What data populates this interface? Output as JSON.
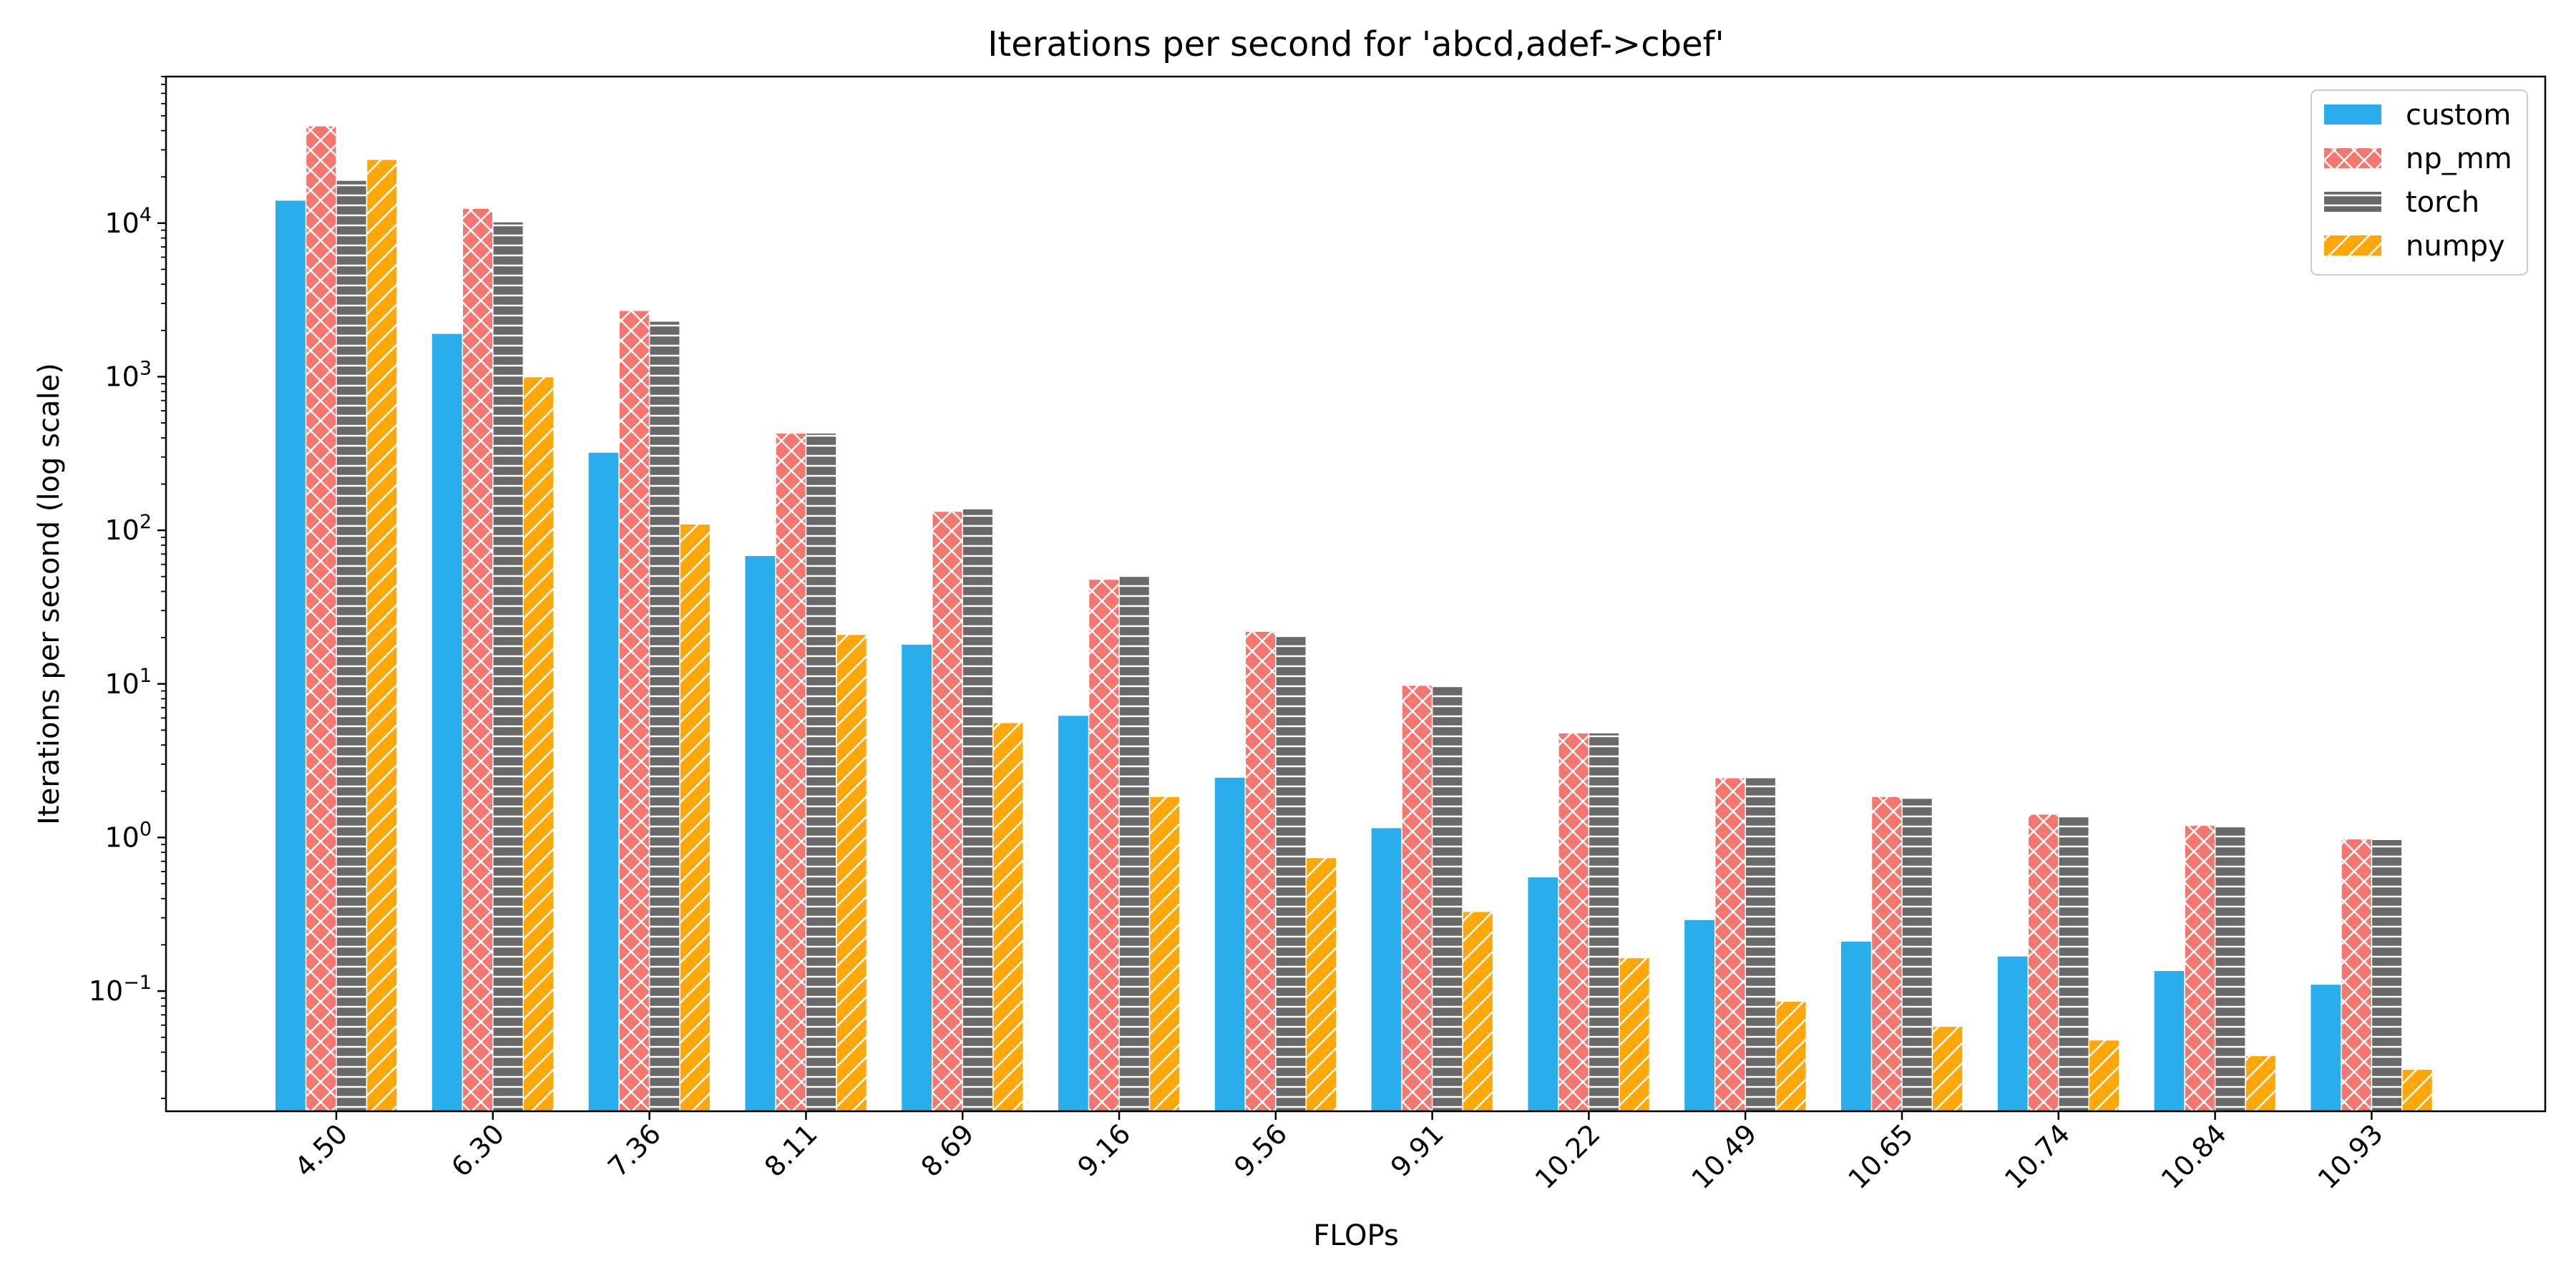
{
  "chart_data": {
    "type": "bar",
    "title": "Iterations per second for 'abcd,adef->cbef'",
    "xlabel": "FLOPs",
    "ylabel": "Iterations per second (log scale)",
    "yscale": "log",
    "ylim": [
      0.0165,
      90000
    ],
    "ytick_values": [
      0.1,
      1,
      10,
      100,
      1000,
      10000
    ],
    "ytick_labels": [
      {
        "base": "10",
        "exp": "−1"
      },
      {
        "base": "10",
        "exp": "0"
      },
      {
        "base": "10",
        "exp": "1"
      },
      {
        "base": "10",
        "exp": "2"
      },
      {
        "base": "10",
        "exp": "3"
      },
      {
        "base": "10",
        "exp": "4"
      }
    ],
    "categories": [
      "4.50",
      "6.30",
      "7.36",
      "8.11",
      "8.69",
      "9.16",
      "9.56",
      "9.91",
      "10.22",
      "10.49",
      "10.65",
      "10.74",
      "10.84",
      "10.93"
    ],
    "series": [
      {
        "name": "custom",
        "color": "#2AADEB",
        "hatch": "none",
        "values": [
          14000,
          1900,
          320,
          68,
          18,
          6.2,
          2.45,
          1.15,
          0.55,
          0.29,
          0.21,
          0.168,
          0.135,
          0.11
        ]
      },
      {
        "name": "np_mm",
        "color": "#F4766E",
        "hatch": "crosshatch",
        "values": [
          43000,
          12500,
          2700,
          430,
          133,
          48,
          22,
          9.8,
          4.8,
          2.45,
          1.85,
          1.42,
          1.2,
          0.98
        ]
      },
      {
        "name": "torch",
        "color": "#696969",
        "hatch": "horizontal",
        "values": [
          19000,
          10200,
          2300,
          430,
          138,
          51,
          20.5,
          9.8,
          4.8,
          2.45,
          1.8,
          1.38,
          1.19,
          0.97
        ]
      },
      {
        "name": "numpy",
        "color": "#FFA707",
        "hatch": "diagonal",
        "values": [
          26000,
          1000,
          110,
          21,
          5.6,
          1.85,
          0.74,
          0.33,
          0.165,
          0.086,
          0.059,
          0.048,
          0.038,
          0.031
        ]
      }
    ],
    "legend_position": "top-right",
    "grid": false
  }
}
